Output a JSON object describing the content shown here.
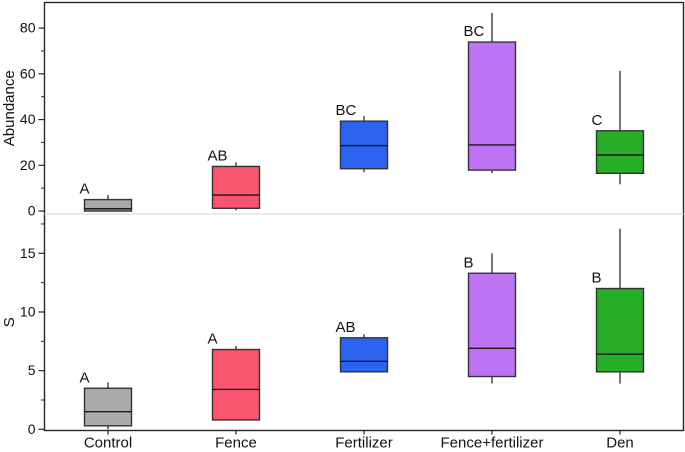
{
  "chart_data": {
    "type": "boxplot",
    "orientation": "vertical",
    "grid": "off",
    "legend": "none",
    "categories": [
      "Control",
      "Fence",
      "Fertilizer",
      "Fence+fertilizer",
      "Den"
    ],
    "category_colors": {
      "Control": "#ababab",
      "Fence": "#f8566e",
      "Fertilizer": "#2c63f1",
      "Fence+fertilizer": "#bd73f3",
      "Den": "#28ad28"
    },
    "box_stroke_color": "#333333",
    "line_color": "#1a1a1a",
    "frame_color": "#262626",
    "divider_color": "#dedede",
    "text_color": "#111111",
    "panels": [
      {
        "ylabel": "Abundance",
        "ylim": [
          -1.3,
          91.2
        ],
        "major_ticks": [
          0,
          20,
          40,
          60,
          80
        ],
        "minor_ticks": [
          10,
          30,
          50,
          70
        ],
        "boxes": [
          {
            "category": "Control",
            "letter": "A",
            "whisker_low": 0,
            "q1": 0,
            "median": 1,
            "q3": 5,
            "whisker_high": 7
          },
          {
            "category": "Fence",
            "letter": "AB",
            "whisker_low": 0.3,
            "q1": 1.2,
            "median": 7,
            "q3": 19.5,
            "whisker_high": 21.3
          },
          {
            "category": "Fertilizer",
            "letter": "BC",
            "whisker_low": 17,
            "q1": 18.5,
            "median": 28.6,
            "q3": 39.3,
            "whisker_high": 41.5
          },
          {
            "category": "Fence+fertilizer",
            "letter": "BC",
            "whisker_low": 16.6,
            "q1": 17.9,
            "median": 28.9,
            "q3": 73.9,
            "whisker_high": 86.6
          },
          {
            "category": "Den",
            "letter": "C",
            "whisker_low": 11.7,
            "q1": 16.5,
            "median": 24.5,
            "q3": 35.1,
            "whisker_high": 61.3
          }
        ]
      },
      {
        "ylabel": "S",
        "ylim": [
          -0.1,
          18.35
        ],
        "major_ticks": [
          0,
          5,
          10,
          15
        ],
        "minor_ticks": [
          2.5,
          7.5,
          12.5,
          17.5
        ],
        "boxes": [
          {
            "category": "Control",
            "letter": "A",
            "whisker_low": 0,
            "q1": 0.3,
            "median": 1.5,
            "q3": 3.5,
            "whisker_high": 4
          },
          {
            "category": "Fence",
            "letter": "A",
            "whisker_low": 0.8,
            "q1": 0.8,
            "median": 3.4,
            "q3": 6.8,
            "whisker_high": 7.1
          },
          {
            "category": "Fertilizer",
            "letter": "AB",
            "whisker_low": 4.9,
            "q1": 4.9,
            "median": 5.8,
            "q3": 7.8,
            "whisker_high": 8.1
          },
          {
            "category": "Fence+fertilizer",
            "letter": "B",
            "whisker_low": 3.9,
            "q1": 4.5,
            "median": 6.9,
            "q3": 13.3,
            "whisker_high": 15
          },
          {
            "category": "Den",
            "letter": "B",
            "whisker_low": 3.9,
            "q1": 4.9,
            "median": 6.4,
            "q3": 12,
            "whisker_high": 17.1
          }
        ]
      }
    ]
  }
}
